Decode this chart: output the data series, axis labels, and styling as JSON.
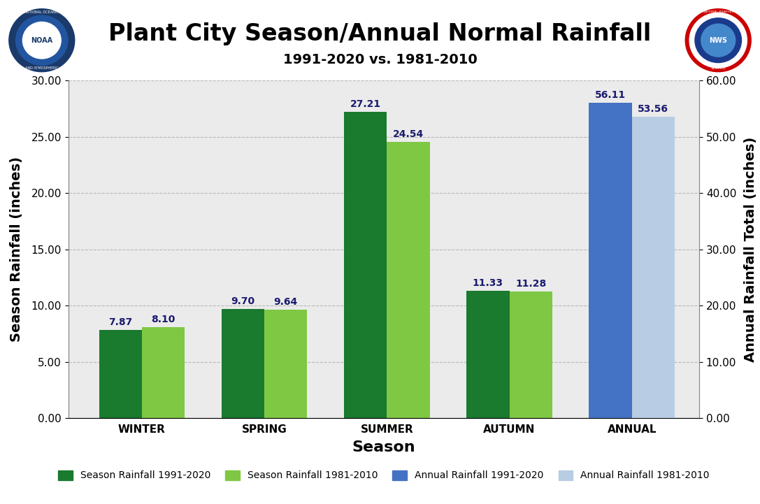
{
  "title": "Plant City Season/Annual Normal Rainfall",
  "subtitle": "1991-2020 vs. 1981-2010",
  "seasons": [
    "WINTER",
    "SPRING",
    "SUMMER",
    "AUTUMN"
  ],
  "season_values_1991": [
    7.87,
    9.7,
    27.21,
    11.33
  ],
  "season_values_1981": [
    8.1,
    9.64,
    24.54,
    11.28
  ],
  "annual_values_1991": [
    56.11
  ],
  "annual_values_1981": [
    53.56
  ],
  "color_season_1991": "#1a7a2e",
  "color_season_1981": "#7ec843",
  "color_annual_1991": "#4472c4",
  "color_annual_1981": "#b8cce4",
  "ylabel_left": "Season Rainfall (inches)",
  "ylabel_right": "Annual Rainfall Total (inches)",
  "xlabel": "Season",
  "ylim_left": [
    0,
    30.0
  ],
  "ylim_right": [
    0,
    60.0
  ],
  "yticks_left": [
    0.0,
    5.0,
    10.0,
    15.0,
    20.0,
    25.0,
    30.0
  ],
  "yticks_right": [
    0.0,
    10.0,
    20.0,
    30.0,
    40.0,
    50.0,
    60.0
  ],
  "background_color": "#ebebeb",
  "legend_labels": [
    "Season Rainfall 1991-2020",
    "Season Rainfall 1981-2010",
    "Annual Rainfall 1991-2020",
    "Annual Rainfall 1981-2010"
  ],
  "bar_width": 0.35,
  "title_fontsize": 24,
  "subtitle_fontsize": 14,
  "axis_label_fontsize": 14,
  "tick_label_fontsize": 11,
  "value_label_fontsize": 10,
  "value_label_color": "#1a1a6e",
  "grid_color": "#aaaaaa",
  "grid_style": "--",
  "grid_alpha": 0.8
}
